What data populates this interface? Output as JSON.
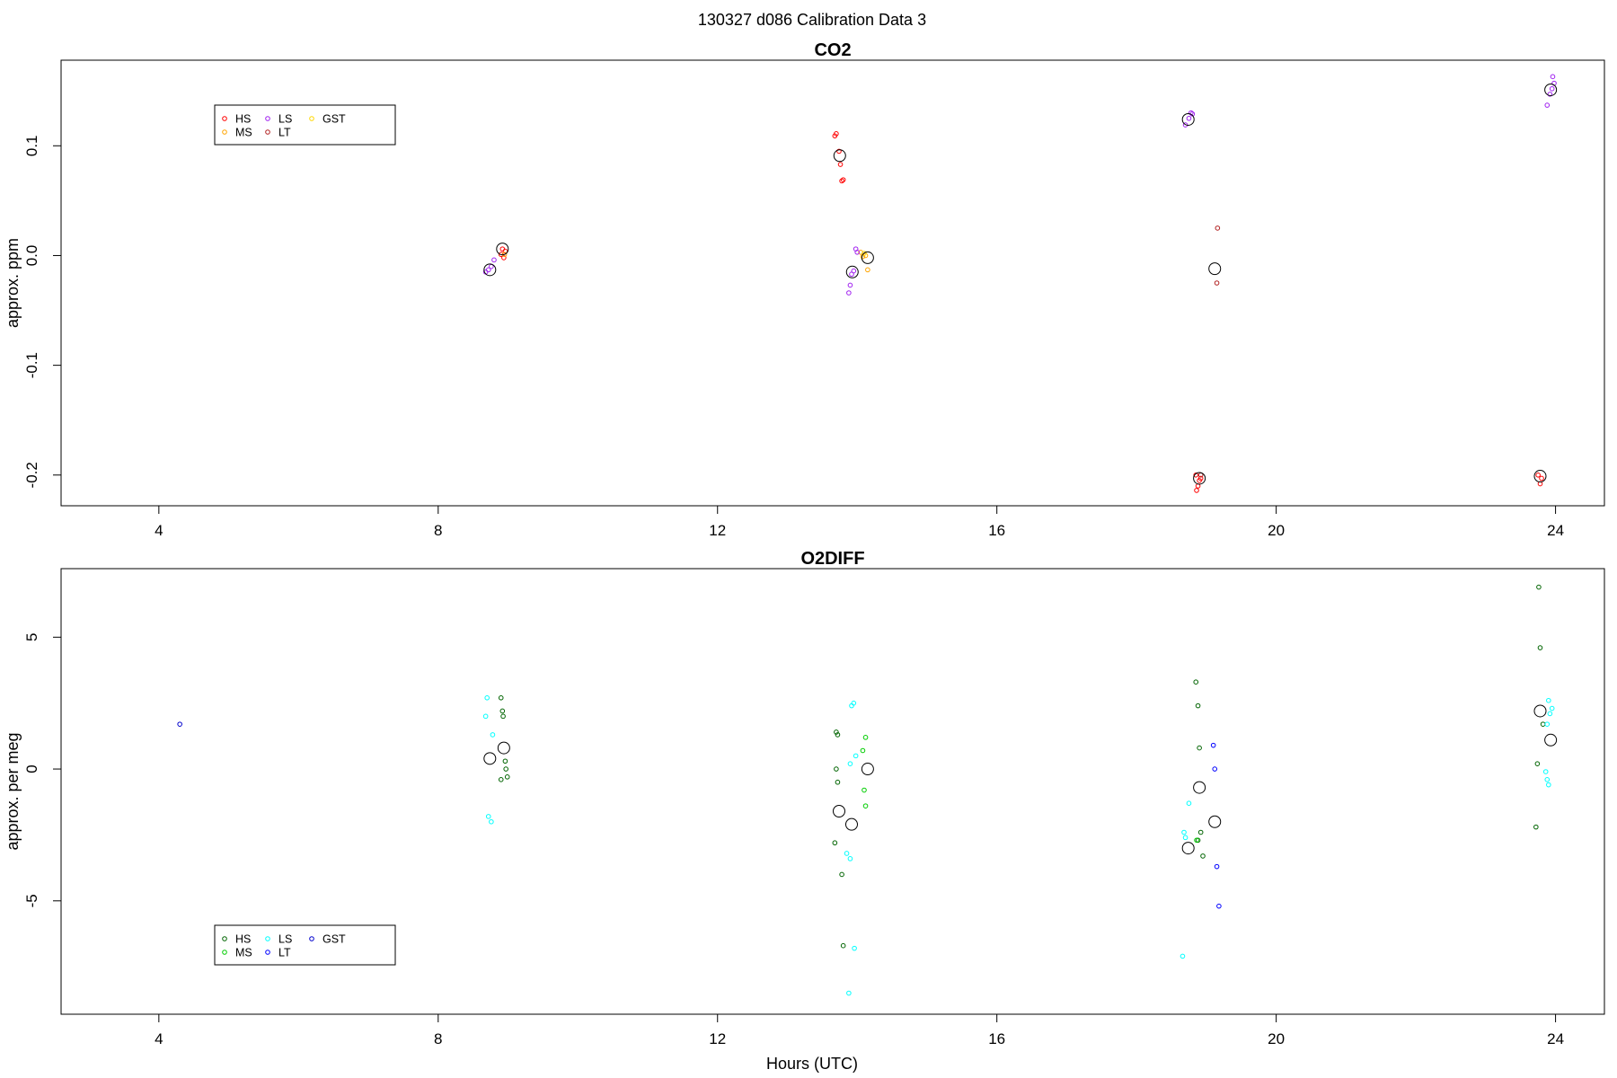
{
  "figure_title": "130327   d086   Calibration Data 3",
  "xlabel": "Hours (UTC)",
  "chart_data": [
    {
      "type": "scatter",
      "title": "CO2",
      "xlabel": "",
      "ylabel": "approx. ppm",
      "xlim": [
        2.6,
        24.7
      ],
      "ylim": [
        -0.228,
        0.178
      ],
      "xticks": [
        4,
        8,
        12,
        16,
        20,
        24
      ],
      "yticks": [
        -0.2,
        -0.1,
        0.0,
        0.1
      ],
      "ytick_labels": [
        "-0.2",
        "-0.1",
        "0.0",
        "0.1"
      ],
      "legend": {
        "position": "top-left",
        "entries": [
          {
            "name": "HS",
            "color": "#FF0000"
          },
          {
            "name": "MS",
            "color": "#FFA500"
          },
          {
            "name": "LS",
            "color": "#A020F0"
          },
          {
            "name": "LT",
            "color": "#B22222"
          },
          {
            "name": "GST",
            "color": "#FFD700"
          }
        ]
      },
      "series": [
        {
          "name": "HS",
          "color": "#FF0000",
          "points": [
            [
              8.92,
              0.006
            ],
            [
              8.96,
              0.004
            ],
            [
              8.9,
              0.001
            ],
            [
              8.94,
              -0.002
            ],
            [
              13.68,
              0.109
            ],
            [
              13.7,
              0.111
            ],
            [
              13.74,
              0.095
            ],
            [
              13.76,
              0.083
            ],
            [
              13.78,
              0.068
            ],
            [
              13.8,
              0.069
            ],
            [
              18.85,
              -0.2
            ],
            [
              18.88,
              -0.21
            ],
            [
              18.92,
              -0.203
            ],
            [
              18.9,
              -0.205
            ],
            [
              18.86,
              -0.214
            ],
            [
              23.75,
              -0.2
            ],
            [
              23.8,
              -0.203
            ],
            [
              23.78,
              -0.208
            ]
          ]
        },
        {
          "name": "MS",
          "color": "#FFA500",
          "points": [
            [
              8.95,
              0.001
            ],
            [
              14.05,
              0.003
            ],
            [
              14.12,
              0.0
            ],
            [
              14.08,
              -0.001
            ],
            [
              14.15,
              -0.013
            ]
          ]
        },
        {
          "name": "LS",
          "color": "#A020F0",
          "points": [
            [
              8.68,
              -0.015
            ],
            [
              8.72,
              -0.013
            ],
            [
              8.76,
              -0.01
            ],
            [
              8.8,
              -0.004
            ],
            [
              13.88,
              -0.034
            ],
            [
              13.9,
              -0.027
            ],
            [
              13.92,
              -0.017
            ],
            [
              13.95,
              -0.014
            ],
            [
              13.98,
              0.006
            ],
            [
              14.0,
              0.003
            ],
            [
              18.7,
              0.119
            ],
            [
              18.75,
              0.125
            ],
            [
              18.8,
              0.129
            ],
            [
              18.78,
              0.13
            ],
            [
              23.88,
              0.137
            ],
            [
              23.92,
              0.147
            ],
            [
              23.95,
              0.152
            ],
            [
              23.96,
              0.163
            ],
            [
              23.98,
              0.157
            ]
          ]
        },
        {
          "name": "LT",
          "color": "#B22222",
          "points": [
            [
              19.16,
              0.025
            ],
            [
              19.15,
              -0.025
            ],
            [
              18.92,
              -0.2
            ]
          ]
        },
        {
          "name": "GST",
          "color": "#FFD700",
          "points": [
            [
              14.1,
              0.002
            ]
          ]
        }
      ],
      "means": [
        [
          8.74,
          -0.013
        ],
        [
          8.92,
          0.006
        ],
        [
          13.75,
          0.091
        ],
        [
          13.93,
          -0.015
        ],
        [
          14.15,
          -0.002
        ],
        [
          18.74,
          0.124
        ],
        [
          18.9,
          -0.203
        ],
        [
          19.12,
          -0.012
        ],
        [
          23.78,
          -0.201
        ],
        [
          23.93,
          0.151
        ]
      ]
    },
    {
      "type": "scatter",
      "title": "O2DIFF",
      "xlabel": "Hours (UTC)",
      "ylabel": "approx. per meg",
      "xlim": [
        2.6,
        24.7
      ],
      "ylim": [
        -9.3,
        7.6
      ],
      "xticks": [
        4,
        8,
        12,
        16,
        20,
        24
      ],
      "yticks": [
        -5,
        0,
        5
      ],
      "ytick_labels": [
        "-5",
        "0",
        "5"
      ],
      "legend": {
        "position": "bottom-left",
        "entries": [
          {
            "name": "HS",
            "color": "#006400"
          },
          {
            "name": "MS",
            "color": "#00CD00"
          },
          {
            "name": "LS",
            "color": "#00FFFF"
          },
          {
            "name": "LT",
            "color": "#0000FF"
          },
          {
            "name": "GST",
            "color": "#0000CD"
          }
        ]
      },
      "series": [
        {
          "name": "HS",
          "color": "#006400",
          "points": [
            [
              8.9,
              2.7
            ],
            [
              8.92,
              2.2
            ],
            [
              8.93,
              2.0
            ],
            [
              8.96,
              0.3
            ],
            [
              8.97,
              0.0
            ],
            [
              8.99,
              -0.3
            ],
            [
              8.9,
              -0.4
            ],
            [
              13.7,
              1.4
            ],
            [
              13.72,
              1.3
            ],
            [
              13.7,
              0.0
            ],
            [
              13.72,
              -0.5
            ],
            [
              13.68,
              -2.8
            ],
            [
              13.78,
              -4.0
            ],
            [
              13.8,
              -6.7
            ],
            [
              18.85,
              3.3
            ],
            [
              18.88,
              2.4
            ],
            [
              18.9,
              0.8
            ],
            [
              18.92,
              -2.4
            ],
            [
              18.95,
              -3.3
            ],
            [
              18.88,
              -2.7
            ],
            [
              23.76,
              6.9
            ],
            [
              23.78,
              4.6
            ],
            [
              23.82,
              1.7
            ],
            [
              23.74,
              0.2
            ],
            [
              23.72,
              -2.2
            ]
          ]
        },
        {
          "name": "MS",
          "color": "#00CD00",
          "points": [
            [
              14.12,
              1.2
            ],
            [
              14.08,
              0.7
            ],
            [
              14.1,
              -0.8
            ],
            [
              14.12,
              -1.4
            ],
            [
              18.86,
              -2.7
            ]
          ]
        },
        {
          "name": "LS",
          "color": "#00FFFF",
          "points": [
            [
              8.7,
              2.7
            ],
            [
              8.68,
              2.0
            ],
            [
              8.78,
              1.3
            ],
            [
              8.72,
              -1.8
            ],
            [
              8.76,
              -2.0
            ],
            [
              13.95,
              2.5
            ],
            [
              13.92,
              2.4
            ],
            [
              13.98,
              0.5
            ],
            [
              13.9,
              0.2
            ],
            [
              13.85,
              -3.2
            ],
            [
              13.9,
              -3.4
            ],
            [
              13.96,
              -6.8
            ],
            [
              13.88,
              -8.5
            ],
            [
              18.68,
              -2.4
            ],
            [
              18.7,
              -2.6
            ],
            [
              18.75,
              -1.3
            ],
            [
              18.66,
              -7.1
            ],
            [
              23.9,
              2.6
            ],
            [
              23.95,
              2.3
            ],
            [
              23.92,
              2.1
            ],
            [
              23.88,
              1.7
            ],
            [
              23.86,
              -0.1
            ],
            [
              23.9,
              -0.6
            ],
            [
              23.88,
              -0.4
            ]
          ]
        },
        {
          "name": "LT",
          "color": "#0000FF",
          "points": [
            [
              19.1,
              0.9
            ],
            [
              19.12,
              0.0
            ],
            [
              19.15,
              -3.7
            ],
            [
              19.18,
              -5.2
            ]
          ]
        },
        {
          "name": "GST",
          "color": "#0000CD",
          "points": [
            [
              4.3,
              1.7
            ]
          ]
        }
      ],
      "means": [
        [
          8.74,
          0.4
        ],
        [
          8.94,
          0.8
        ],
        [
          13.74,
          -1.6
        ],
        [
          13.92,
          -2.1
        ],
        [
          14.15,
          0.0
        ],
        [
          18.74,
          -3.0
        ],
        [
          18.9,
          -0.7
        ],
        [
          19.12,
          -2.0
        ],
        [
          23.78,
          2.2
        ],
        [
          23.93,
          1.1
        ]
      ]
    }
  ]
}
